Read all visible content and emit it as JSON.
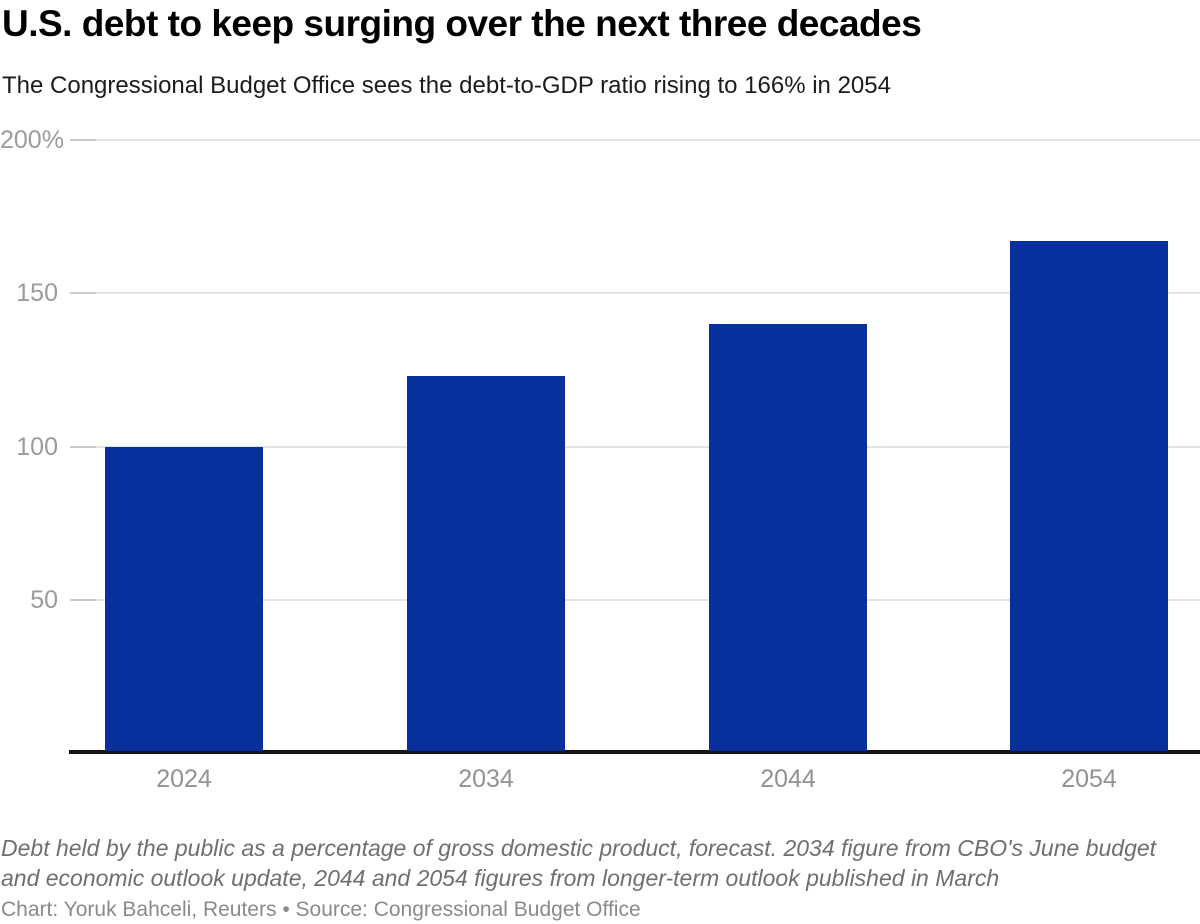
{
  "header": {
    "title": "U.S. debt to keep surging over the next three decades",
    "subtitle": "The Congressional Budget Office sees the debt-to-GDP ratio rising to 166% in 2054"
  },
  "chart_data": {
    "type": "bar",
    "title": "U.S. debt to keep surging over the next three decades",
    "subtitle": "The Congressional Budget Office sees the debt-to-GDP ratio rising to 166% in 2054",
    "categories": [
      "2024",
      "2034",
      "2044",
      "2054"
    ],
    "values": [
      99,
      122,
      139,
      166
    ],
    "unit": "% of GDP",
    "xlabel": "",
    "ylabel": "",
    "ylim": [
      0,
      200
    ],
    "yticks": [
      {
        "value": 200,
        "label": "200%"
      },
      {
        "value": 150,
        "label": "150"
      },
      {
        "value": 100,
        "label": "100"
      },
      {
        "value": 50,
        "label": "50"
      }
    ],
    "grid": true,
    "legend": "none",
    "bar_color": "#08309c"
  },
  "colors": {
    "bar": "#08309c",
    "axis_label": "#9b9b9b",
    "gridline": "#e4e4e4",
    "tick": "#c9c9c9",
    "axis_line": "#161616"
  },
  "footer": {
    "note_lines": [
      "Debt held by the public as a percentage of gross domestic product, forecast. 2034 figure from CBO's June budget",
      "and economic outlook update, 2044 and 2054 figures from longer-term outlook published in March"
    ],
    "credit": "Chart: Yoruk Bahceli, Reuters • Source: Congressional Budget Office"
  }
}
